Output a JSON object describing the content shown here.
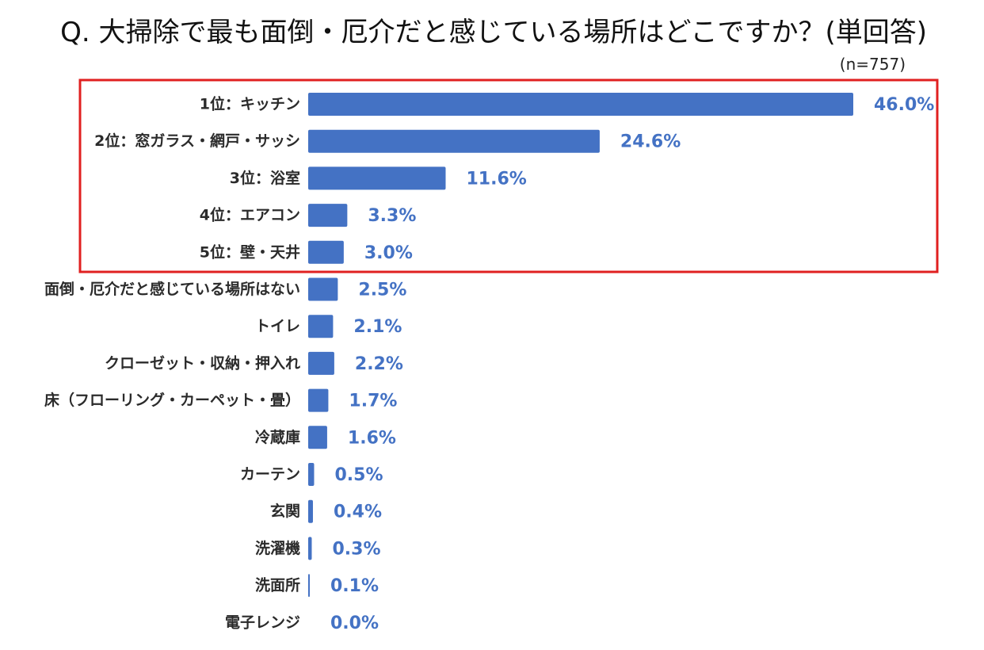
{
  "chart_data": {
    "type": "bar",
    "orientation": "horizontal",
    "title": "Q. 大掃除で最も面倒・厄介だと感じている場所はどこですか？(単回答)",
    "subtitle": "(n=757)",
    "unit": "%",
    "xlim": [
      0,
      46
    ],
    "bar_color": "#4472c4",
    "value_color": "#4472c4",
    "highlight_color": "#e02020",
    "highlight_count": 5,
    "categories": [
      "1位：キッチン",
      "2位：窓ガラス・網戸・サッシ",
      "3位：浴室",
      "4位：エアコン",
      "5位：壁・天井",
      "面倒・厄介だと感じている場所はない",
      "トイレ",
      "クローゼット・収納・押入れ",
      "床（フローリング・カーペット・畳）",
      "冷蔵庫",
      "カーテン",
      "玄関",
      "洗濯機",
      "洗面所",
      "電子レンジ"
    ],
    "values": [
      46.0,
      24.6,
      11.6,
      3.3,
      3.0,
      2.5,
      2.1,
      2.2,
      1.7,
      1.6,
      0.5,
      0.4,
      0.3,
      0.1,
      0.0
    ],
    "value_labels": [
      "46.0%",
      "24.6%",
      "11.6%",
      "3.3%",
      "3.0%",
      "2.5%",
      "2.1%",
      "2.2%",
      "1.7%",
      "1.6%",
      "0.5%",
      "0.4%",
      "0.3%",
      "0.1%",
      "0.0%"
    ]
  }
}
